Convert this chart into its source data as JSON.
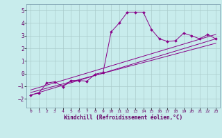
{
  "xlabel": "Windchill (Refroidissement éolien,°C)",
  "background_color": "#c8ecec",
  "line_color": "#880088",
  "grid_color": "#aacccc",
  "xlim": [
    -0.5,
    23.5
  ],
  "ylim": [
    -2.7,
    5.5
  ],
  "xticks": [
    0,
    1,
    2,
    3,
    4,
    5,
    6,
    7,
    8,
    9,
    10,
    11,
    12,
    13,
    14,
    15,
    16,
    17,
    18,
    19,
    20,
    21,
    22,
    23
  ],
  "yticks": [
    -2,
    -1,
    0,
    1,
    2,
    3,
    4,
    5
  ],
  "main_x": [
    0,
    1,
    2,
    3,
    4,
    5,
    6,
    7,
    8,
    9,
    10,
    11,
    12,
    13,
    14,
    15,
    16,
    17,
    18,
    19,
    20,
    21,
    22,
    23
  ],
  "main_y": [
    -1.7,
    -1.55,
    -0.75,
    -0.65,
    -1.05,
    -0.55,
    -0.55,
    -0.6,
    -0.05,
    0.1,
    3.3,
    4.0,
    4.85,
    4.85,
    4.85,
    3.5,
    2.75,
    2.55,
    2.6,
    3.2,
    3.0,
    2.75,
    3.1,
    2.75
  ],
  "line1_x": [
    0,
    23
  ],
  "line1_y": [
    -1.7,
    2.75
  ],
  "line2_x": [
    0,
    23
  ],
  "line2_y": [
    -1.5,
    2.4
  ],
  "line3_x": [
    0,
    23
  ],
  "line3_y": [
    -1.3,
    3.1
  ]
}
